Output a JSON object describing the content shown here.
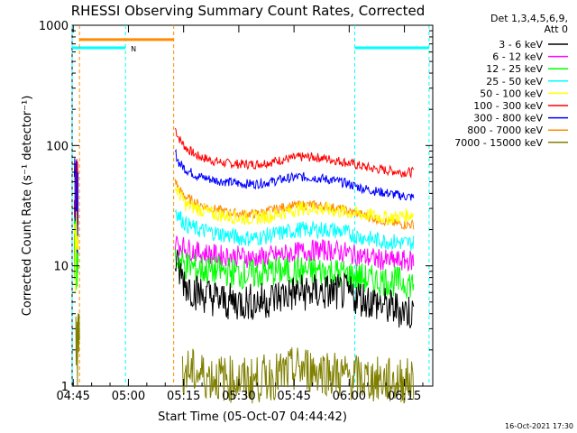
{
  "chart_data": {
    "type": "line",
    "title": "RHESSI Observing Summary Count Rates, Corrected",
    "xlabel": "Start Time (05-Oct-07 04:44:42)",
    "ylabel": "Corrected Count Rate (s⁻¹ detector⁻¹)",
    "x_unit": "minutes after 04:44:42",
    "xlim": [
      0,
      98
    ],
    "ylim": [
      1,
      1000
    ],
    "y_scale": "log",
    "x_ticks": [
      {
        "label": "04:45",
        "x": 0.3
      },
      {
        "label": "05:00",
        "x": 15.3
      },
      {
        "label": "05:15",
        "x": 30.3
      },
      {
        "label": "05:30",
        "x": 45.3
      },
      {
        "label": "05:45",
        "x": 60.3
      },
      {
        "label": "06:00",
        "x": 75.3
      },
      {
        "label": "06:15",
        "x": 90.3
      }
    ],
    "y_ticks": [
      {
        "label": "1",
        "y": 1
      },
      {
        "label": "10",
        "y": 10
      },
      {
        "label": "100",
        "y": 100
      },
      {
        "label": "1000",
        "y": 1000
      }
    ],
    "legend": {
      "placement": "right",
      "header": [
        "Det 1,3,4,5,6,9,",
        "Att 0"
      ],
      "entries": [
        {
          "label": "3 - 6 keV",
          "color": "#000000"
        },
        {
          "label": "6 - 12 keV",
          "color": "#ff00ff"
        },
        {
          "label": "12 - 25 keV",
          "color": "#00ff00"
        },
        {
          "label": "25 - 50 keV",
          "color": "#00ffff"
        },
        {
          "label": "50 - 100 keV",
          "color": "#ffff00"
        },
        {
          "label": "100 - 300 keV",
          "color": "#ff0000"
        },
        {
          "label": "300 - 800 keV",
          "color": "#0000ff"
        },
        {
          "label": "800 - 7000 keV",
          "color": "#ff8c00"
        },
        {
          "label": "7000 - 15000 keV",
          "color": "#808000"
        }
      ]
    },
    "series": [
      {
        "color": "#ff0000",
        "points": [
          [
            28.0,
            140
          ],
          [
            29,
            115
          ],
          [
            31,
            95
          ],
          [
            34,
            82
          ],
          [
            38,
            75
          ],
          [
            42,
            71
          ],
          [
            46,
            70
          ],
          [
            50,
            70
          ],
          [
            54,
            73
          ],
          [
            58,
            77
          ],
          [
            62,
            80
          ],
          [
            66,
            80
          ],
          [
            70,
            77
          ],
          [
            74,
            73
          ],
          [
            78,
            68
          ],
          [
            82,
            64
          ],
          [
            86,
            62
          ],
          [
            90,
            60
          ],
          [
            93,
            60
          ]
        ],
        "noise": 0.04
      },
      {
        "color": "#0000ff",
        "points": [
          [
            28.0,
            88
          ],
          [
            29,
            72
          ],
          [
            31,
            63
          ],
          [
            34,
            56
          ],
          [
            38,
            52
          ],
          [
            42,
            50
          ],
          [
            46,
            48
          ],
          [
            50,
            48
          ],
          [
            54,
            50
          ],
          [
            58,
            53
          ],
          [
            62,
            55
          ],
          [
            66,
            54
          ],
          [
            70,
            52
          ],
          [
            74,
            49
          ],
          [
            78,
            45
          ],
          [
            82,
            42
          ],
          [
            86,
            40
          ],
          [
            90,
            38
          ],
          [
            93,
            37
          ]
        ],
        "noise": 0.04
      },
      {
        "color": "#ff8c00",
        "points": [
          [
            28.0,
            52
          ],
          [
            29,
            43
          ],
          [
            31,
            37
          ],
          [
            34,
            33
          ],
          [
            38,
            30
          ],
          [
            42,
            28
          ],
          [
            46,
            27
          ],
          [
            50,
            27
          ],
          [
            54,
            29
          ],
          [
            58,
            31
          ],
          [
            62,
            32
          ],
          [
            66,
            32
          ],
          [
            70,
            31
          ],
          [
            74,
            29
          ],
          [
            78,
            27
          ],
          [
            82,
            25
          ],
          [
            86,
            23
          ],
          [
            90,
            22
          ],
          [
            93,
            22
          ]
        ],
        "noise": 0.04
      },
      {
        "color": "#ffff00",
        "points": [
          [
            28.0,
            45
          ],
          [
            31,
            32
          ],
          [
            34,
            30
          ],
          [
            38,
            27
          ],
          [
            42,
            26
          ],
          [
            46,
            25
          ],
          [
            50,
            25
          ],
          [
            54,
            26
          ],
          [
            58,
            28
          ],
          [
            62,
            30
          ],
          [
            66,
            30
          ],
          [
            70,
            29
          ],
          [
            74,
            28
          ],
          [
            78,
            27
          ],
          [
            82,
            26
          ],
          [
            86,
            25
          ],
          [
            90,
            26
          ],
          [
            93,
            27
          ]
        ],
        "noise": 0.06
      },
      {
        "color": "#00ffff",
        "points": [
          [
            28.0,
            30
          ],
          [
            29,
            26
          ],
          [
            31,
            22
          ],
          [
            34,
            20
          ],
          [
            38,
            19
          ],
          [
            42,
            18
          ],
          [
            46,
            17
          ],
          [
            50,
            17
          ],
          [
            54,
            18
          ],
          [
            58,
            19
          ],
          [
            62,
            20
          ],
          [
            66,
            20
          ],
          [
            70,
            20
          ],
          [
            74,
            19
          ],
          [
            78,
            17.5
          ],
          [
            82,
            16.5
          ],
          [
            86,
            16
          ],
          [
            90,
            15.5
          ],
          [
            93,
            15.5
          ]
        ],
        "noise": 0.07
      },
      {
        "color": "#ff00ff",
        "points": [
          [
            28.0,
            16
          ],
          [
            29,
            15
          ],
          [
            31,
            14
          ],
          [
            34,
            13
          ],
          [
            38,
            12.5
          ],
          [
            42,
            12
          ],
          [
            46,
            12
          ],
          [
            50,
            11.5
          ],
          [
            54,
            12
          ],
          [
            58,
            12.5
          ],
          [
            62,
            13
          ],
          [
            66,
            13.5
          ],
          [
            70,
            13.5
          ],
          [
            74,
            13
          ],
          [
            78,
            12
          ],
          [
            82,
            11.5
          ],
          [
            86,
            11
          ],
          [
            90,
            11
          ],
          [
            93,
            11
          ]
        ],
        "noise": 0.09
      },
      {
        "color": "#00ff00",
        "points": [
          [
            28.0,
            12
          ],
          [
            29,
            11
          ],
          [
            31,
            10
          ],
          [
            34,
            9.5
          ],
          [
            38,
            9
          ],
          [
            42,
            9
          ],
          [
            46,
            8.5
          ],
          [
            50,
            8.5
          ],
          [
            54,
            9
          ],
          [
            58,
            9
          ],
          [
            62,
            9
          ],
          [
            66,
            9
          ],
          [
            70,
            9
          ],
          [
            74,
            8.5
          ],
          [
            78,
            8
          ],
          [
            82,
            7.5
          ],
          [
            86,
            7.5
          ],
          [
            90,
            7.3
          ],
          [
            93,
            7
          ]
        ],
        "noise": 0.13
      },
      {
        "color": "#000000",
        "points": [
          [
            28.0,
            11
          ],
          [
            29,
            9
          ],
          [
            31,
            7
          ],
          [
            34,
            6
          ],
          [
            38,
            5.5
          ],
          [
            42,
            5
          ],
          [
            46,
            5
          ],
          [
            50,
            5
          ],
          [
            54,
            5.3
          ],
          [
            58,
            5.8
          ],
          [
            62,
            6
          ],
          [
            66,
            6
          ],
          [
            70,
            6
          ],
          [
            74,
            6
          ],
          [
            78,
            5.5
          ],
          [
            82,
            5
          ],
          [
            86,
            4.5
          ],
          [
            90,
            4.3
          ],
          [
            93,
            4
          ]
        ],
        "noise": 0.16
      },
      {
        "color": "#808000",
        "points": [
          [
            30,
            1.35
          ],
          [
            33,
            1.3
          ],
          [
            37,
            1.2
          ],
          [
            42,
            1.15
          ],
          [
            48,
            1.1
          ],
          [
            55,
            1.2
          ],
          [
            62,
            1.4
          ],
          [
            68,
            1.35
          ],
          [
            74,
            1.2
          ],
          [
            80,
            1.15
          ],
          [
            86,
            1.1
          ],
          [
            93,
            1.1
          ]
        ],
        "noise": 0.2
      }
    ],
    "early_spikes": [
      {
        "color": "#ff0000",
        "x": [
          0.6,
          1.6
        ],
        "y": [
          12,
          140
        ]
      },
      {
        "color": "#0000ff",
        "x": [
          0.6,
          1.6
        ],
        "y": [
          8,
          80
        ]
      },
      {
        "color": "#00ff00",
        "x": [
          0.6,
          1.6
        ],
        "y": [
          6,
          40
        ]
      },
      {
        "color": "#ffff00",
        "x": [
          0.6,
          1.6
        ],
        "y": [
          5,
          30
        ]
      },
      {
        "color": "#808000",
        "x": [
          1.0,
          2.0
        ],
        "y": [
          1.0,
          5
        ]
      }
    ],
    "state_bars": [
      {
        "label": "N",
        "color": "#00ffff",
        "y": 650,
        "x": [
          0,
          14.5
        ],
        "vlines": [
          0,
          14.5
        ]
      },
      {
        "label": "",
        "color": "#00ffff",
        "y": 650,
        "x": [
          76.8,
          97
        ],
        "vlines": [
          76.8,
          97
        ]
      },
      {
        "label": "",
        "color": "#ff8c00",
        "y": 760,
        "x": [
          2,
          27.6
        ],
        "vlines": [
          2,
          27.6
        ]
      }
    ]
  },
  "footer_date": "16-Oct-2021 17:30"
}
